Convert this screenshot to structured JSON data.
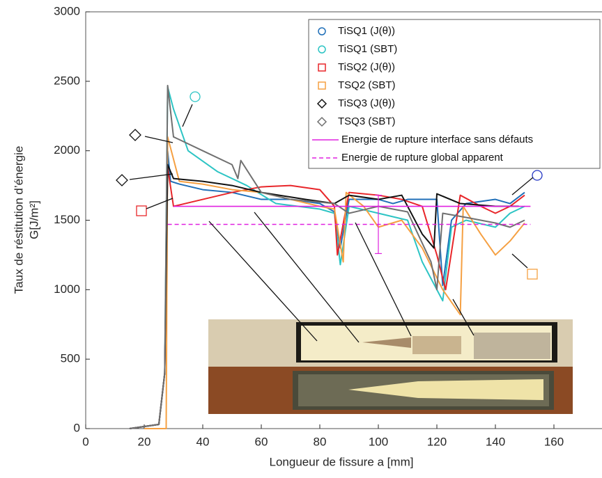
{
  "chart_data": {
    "type": "line",
    "xlabel": "Longueur de fissure a [mm]",
    "ylabel": [
      "Taux de réstitution d’énergie",
      "G[J/m²]"
    ],
    "xlim": [
      0,
      175
    ],
    "xticks": [
      0,
      20,
      40,
      60,
      80,
      100,
      120,
      140,
      160
    ],
    "ylim": [
      0,
      3000
    ],
    "yticks": [
      0,
      500,
      1000,
      1500,
      2000,
      2500,
      3000
    ],
    "grid": false,
    "legend": "upper right",
    "series": [
      {
        "name": "TiSQ1 (J(θ))",
        "color": "#1f6fb8",
        "marker": "o",
        "x": [
          15,
          25,
          27,
          28,
          29,
          32,
          40,
          50,
          60,
          70,
          80,
          85,
          87,
          90,
          100,
          105,
          110,
          120,
          122,
          125,
          130,
          140,
          145,
          150
        ],
        "values": [
          0,
          30,
          400,
          2000,
          1780,
          1760,
          1720,
          1700,
          1650,
          1650,
          1620,
          1560,
          1300,
          1650,
          1650,
          1620,
          1650,
          1650,
          1030,
          1500,
          1620,
          1650,
          1620,
          1700
        ]
      },
      {
        "name": "TiSQ1 (SBT)",
        "color": "#2cc4c4",
        "marker": "o",
        "x": [
          15,
          25,
          27,
          28,
          30,
          35,
          45,
          55,
          65,
          80,
          85,
          87,
          90,
          100,
          110,
          115,
          122,
          125,
          130,
          140,
          145,
          150
        ],
        "values": [
          0,
          30,
          400,
          2460,
          2300,
          2000,
          1850,
          1750,
          1620,
          1580,
          1550,
          1180,
          1600,
          1550,
          1500,
          1200,
          920,
          1450,
          1500,
          1450,
          1550,
          1600
        ]
      },
      {
        "name": "TiSQ2 (J(θ))",
        "color": "#e8262a",
        "marker": "s",
        "x": [
          15,
          25,
          27,
          28,
          30,
          40,
          50,
          60,
          70,
          80,
          85,
          86,
          90,
          100,
          108,
          115,
          120,
          123,
          128,
          135,
          140,
          145,
          150
        ],
        "values": [
          0,
          30,
          400,
          1880,
          1600,
          1650,
          1700,
          1740,
          1750,
          1720,
          1600,
          1250,
          1700,
          1680,
          1650,
          1600,
          1250,
          1000,
          1680,
          1600,
          1550,
          1600,
          1680
        ]
      },
      {
        "name": "TSQ2 (SBT)",
        "color": "#f5a042",
        "marker": "s",
        "x": [
          20,
          27.5,
          28,
          32,
          40,
          50,
          60,
          70,
          80,
          85,
          88,
          89,
          95,
          100,
          108,
          115,
          122,
          128,
          129,
          135,
          140,
          145,
          150
        ],
        "values": [
          0,
          0,
          2100,
          1780,
          1760,
          1720,
          1700,
          1650,
          1600,
          1580,
          1200,
          1700,
          1600,
          1450,
          1500,
          1300,
          1000,
          820,
          1600,
          1400,
          1250,
          1350,
          1480
        ]
      },
      {
        "name": "TiSQ3 (J(θ))",
        "color": "#111111",
        "marker": "d",
        "x": [
          15,
          25,
          27,
          28,
          30,
          40,
          50,
          60,
          75,
          85,
          90,
          100,
          108,
          115,
          119,
          120,
          128,
          140,
          148
        ],
        "values": [
          0,
          30,
          400,
          1900,
          1800,
          1780,
          1750,
          1700,
          1650,
          1620,
          1680,
          1650,
          1680,
          1400,
          1300,
          1690,
          1620,
          1600,
          1600
        ]
      },
      {
        "name": "TSQ3 (SBT)",
        "color": "#707070",
        "marker": "d",
        "x": [
          15,
          25,
          27,
          28,
          30,
          40,
          50,
          52,
          53,
          60,
          70,
          85,
          90,
          100,
          110,
          118,
          120,
          122,
          130,
          140,
          145,
          150
        ],
        "values": [
          0,
          30,
          400,
          2470,
          2100,
          2000,
          1900,
          1800,
          1930,
          1700,
          1650,
          1620,
          1550,
          1600,
          1560,
          1200,
          1000,
          1550,
          1520,
          1480,
          1450,
          1500
        ]
      },
      {
        "name": "Energie de rupture interface sans défauts",
        "color": "#e020e0",
        "marker": "line",
        "x": [
          30,
          152
        ],
        "values": [
          1600,
          1600
        ]
      },
      {
        "name": "Energie de rupture global apparent",
        "color": "#e020e0",
        "marker": "dash",
        "x": [
          28,
          152
        ],
        "values": [
          1470,
          1470
        ]
      }
    ],
    "error_bar": {
      "x": 100,
      "value": 1470,
      "error": 210,
      "color": "#e020e0"
    }
  }
}
